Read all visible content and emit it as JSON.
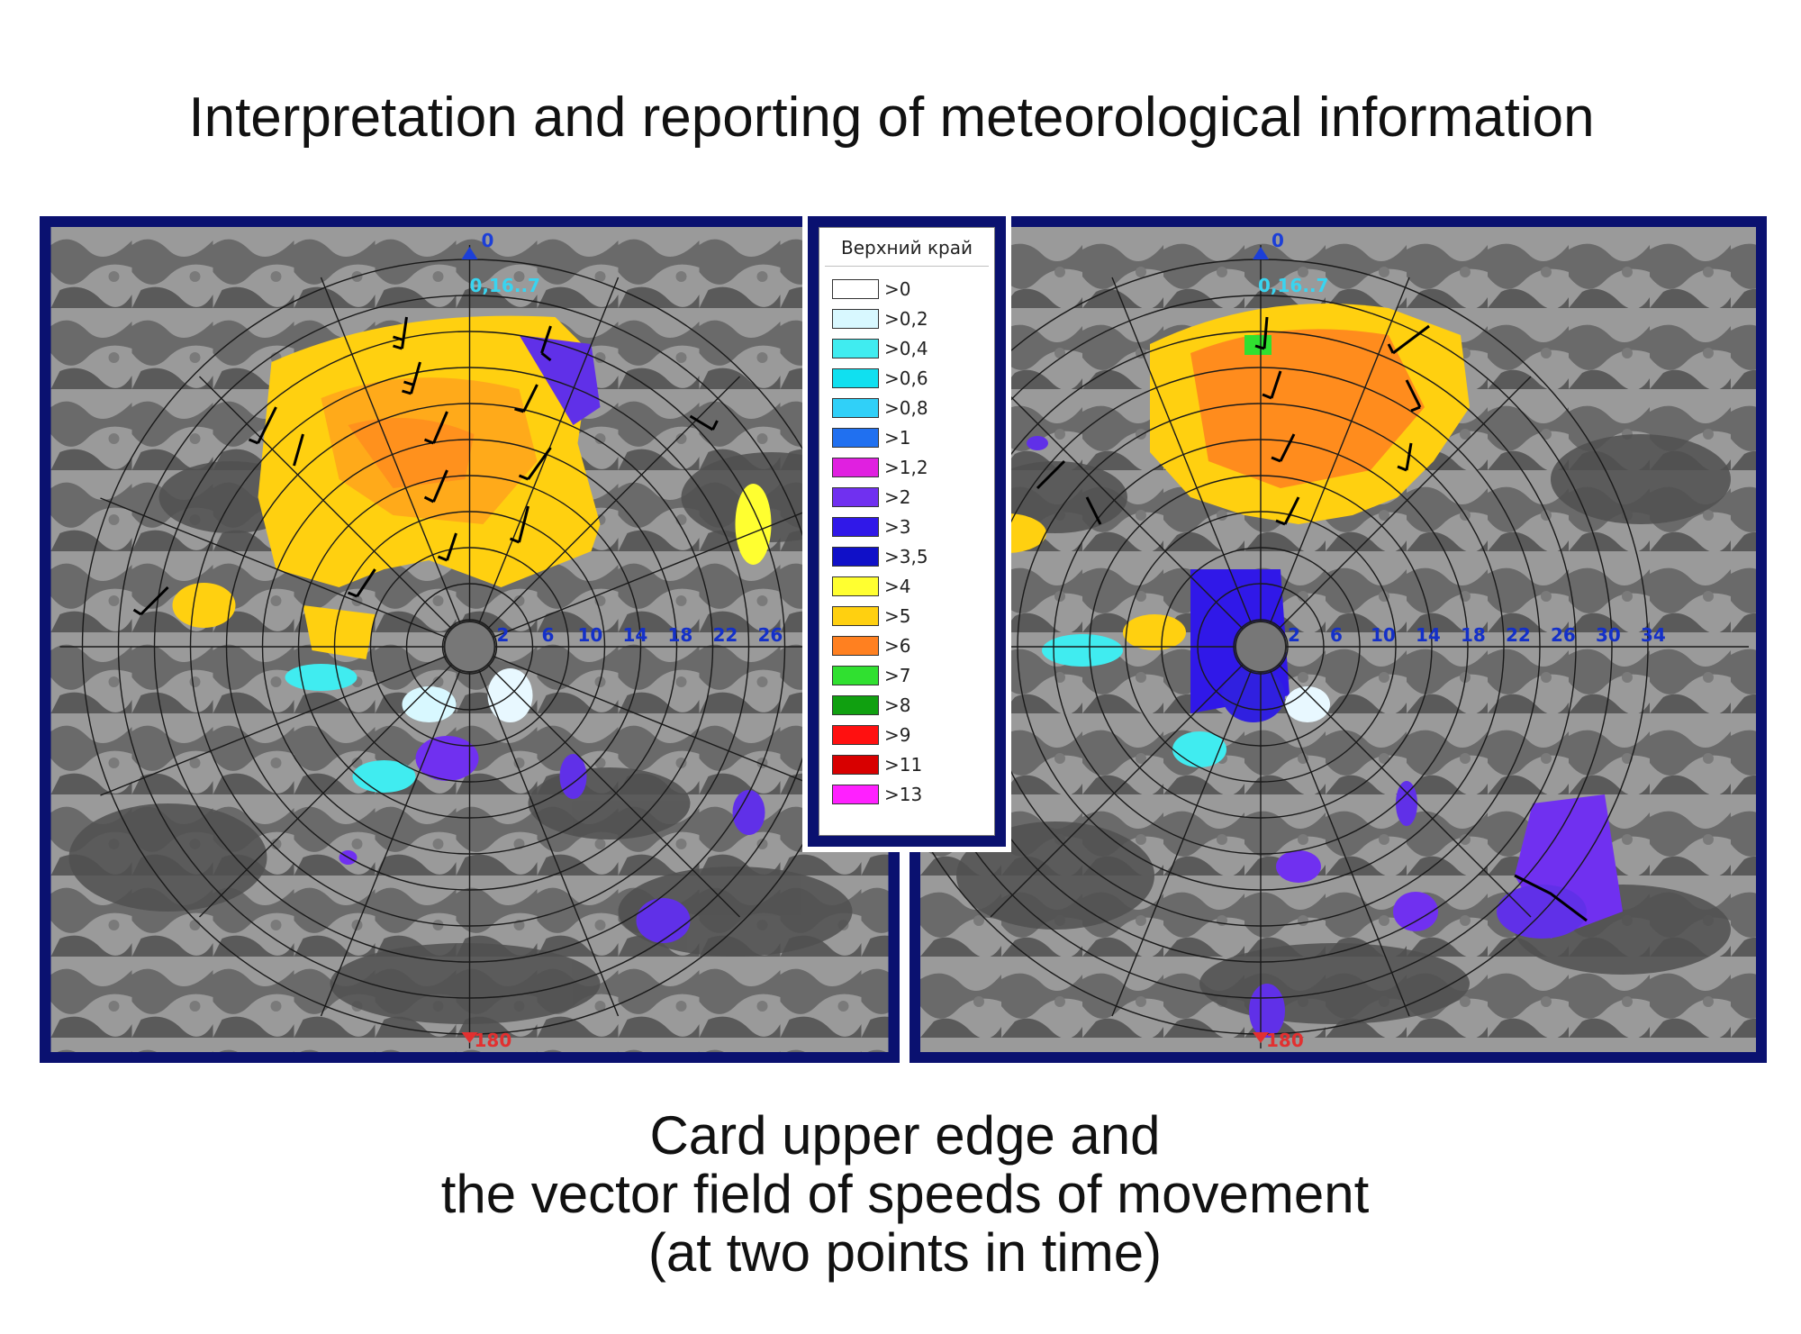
{
  "title": "Interpretation and reporting of meteorological information",
  "caption": {
    "line1": "Card upper edge and",
    "line2": "the vector field of speeds of movement",
    "line3": "(at two points in time)"
  },
  "legend": {
    "title": "Верхний край",
    "items": [
      {
        "label": ">0",
        "color": "#ffffff"
      },
      {
        "label": ">0,2",
        "color": "#d8f8ff"
      },
      {
        "label": ">0,4",
        "color": "#40ecf0"
      },
      {
        "label": ">0,6",
        "color": "#10e0f0"
      },
      {
        "label": ">0,8",
        "color": "#30d0f8"
      },
      {
        "label": ">1",
        "color": "#2070f0"
      },
      {
        "label": ">1,2",
        "color": "#e020e0"
      },
      {
        "label": ">2",
        "color": "#7030f0"
      },
      {
        "label": ">3",
        "color": "#3018e8"
      },
      {
        "label": ">3,5",
        "color": "#1010c8"
      },
      {
        "label": ">4",
        "color": "#ffff30"
      },
      {
        "label": ">5",
        "color": "#ffd010"
      },
      {
        "label": ">6",
        "color": "#ff8020"
      },
      {
        "label": ">7",
        "color": "#30e030"
      },
      {
        "label": ">8",
        "color": "#10a010"
      },
      {
        "label": ">9",
        "color": "#ff1010"
      },
      {
        "label": ">11",
        "color": "#d80000"
      },
      {
        "label": ">13",
        "color": "#ff20ff"
      }
    ]
  },
  "radar_left": {
    "north_label": "0",
    "south_label": "180",
    "time_label": "0,16..7",
    "range_labels": [
      "2",
      "6",
      "10",
      "14",
      "18",
      "22",
      "26"
    ]
  },
  "radar_right": {
    "north_label": "0",
    "south_label": "180",
    "time_label": "0,16..7",
    "range_labels": [
      "2",
      "6",
      "10",
      "14",
      "18",
      "22",
      "26",
      "30",
      "34"
    ]
  },
  "colors": {
    "frame": "#0a1170",
    "map_light": "#9a9a9a",
    "map_dark": "#555555",
    "north_marker": "#1c3fd8",
    "south_marker": "#e23030",
    "time_label": "#39d4f0",
    "range_label": "#1430c8"
  }
}
